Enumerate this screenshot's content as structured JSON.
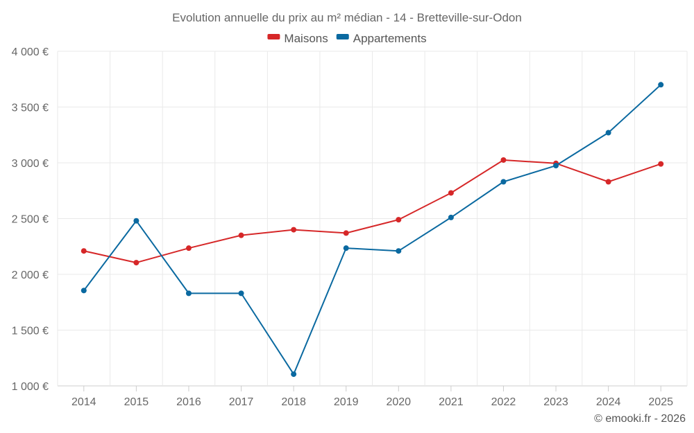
{
  "chart_data": {
    "type": "line",
    "title": "Evolution annuelle du prix au m² médian - 14 - Bretteville-sur-Odon",
    "categories": [
      "2014",
      "2015",
      "2016",
      "2017",
      "2018",
      "2019",
      "2020",
      "2021",
      "2022",
      "2023",
      "2024",
      "2025"
    ],
    "series": [
      {
        "name": "Maisons",
        "color": "#d62728",
        "values": [
          2210,
          2105,
          2235,
          2350,
          2400,
          2370,
          2490,
          2730,
          3025,
          2995,
          2830,
          2990
        ]
      },
      {
        "name": "Appartements",
        "color": "#0a69a0",
        "values": [
          1855,
          2480,
          1830,
          1830,
          1105,
          2235,
          2210,
          2510,
          2830,
          2975,
          3270,
          3700
        ]
      }
    ],
    "ylim": [
      1000,
      4000
    ],
    "yticks": [
      1000,
      1500,
      2000,
      2500,
      3000,
      3500,
      4000
    ],
    "ytick_labels": [
      "1 000 €",
      "1 500 €",
      "2 000 €",
      "2 500 €",
      "3 000 €",
      "3 500 €",
      "4 000 €"
    ],
    "legend_position": "top-center",
    "grid": true
  },
  "credit": "© emooki.fr - 2026"
}
